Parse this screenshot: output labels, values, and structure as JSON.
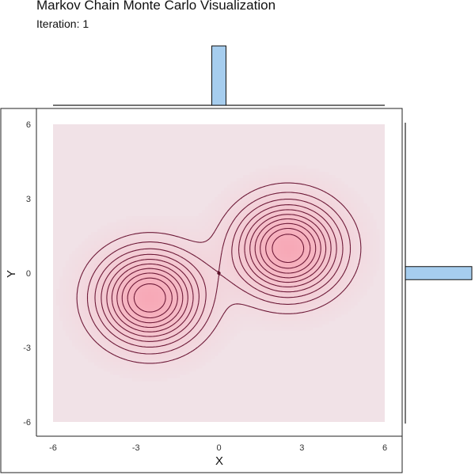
{
  "title": "Markov Chain Monte Carlo Visualization",
  "subtitle": "Iteration: 1",
  "colors": {
    "density_high": "#f7a9b7",
    "density_low": "#f1e2e7",
    "contour": "#6e1a38",
    "histogram_fill": "#a6cdee",
    "histogram_stroke": "#111111",
    "point": "#5a1028"
  },
  "chart_data": {
    "type": "contour",
    "xlabel": "X",
    "ylabel": "Y",
    "xlim": [
      -6,
      6
    ],
    "ylim": [
      -6,
      6
    ],
    "x_ticks": [
      -6,
      -3,
      0,
      3,
      6
    ],
    "y_ticks": [
      -6,
      -3,
      0,
      3,
      6
    ],
    "x_tick_labels": [
      "-6",
      "-3",
      "0",
      "3",
      "6"
    ],
    "y_tick_labels": [
      "-6",
      "-3",
      "0",
      "3",
      "6"
    ],
    "density": {
      "components": [
        {
          "mean": [
            -2.5,
            -1.0
          ],
          "sd": 1.25,
          "weight": 1.0
        },
        {
          "mean": [
            2.5,
            1.0
          ],
          "sd": 1.25,
          "weight": 1.0
        }
      ]
    },
    "contour_levels": 10,
    "samples": [
      [
        0.0,
        0.0
      ]
    ],
    "marginal_x": {
      "bins": [
        [
          -0.2,
          0.2
        ]
      ],
      "counts": [
        1
      ]
    },
    "marginal_y": {
      "bins": [
        [
          -0.2,
          0.2
        ]
      ],
      "counts": [
        1
      ]
    }
  }
}
